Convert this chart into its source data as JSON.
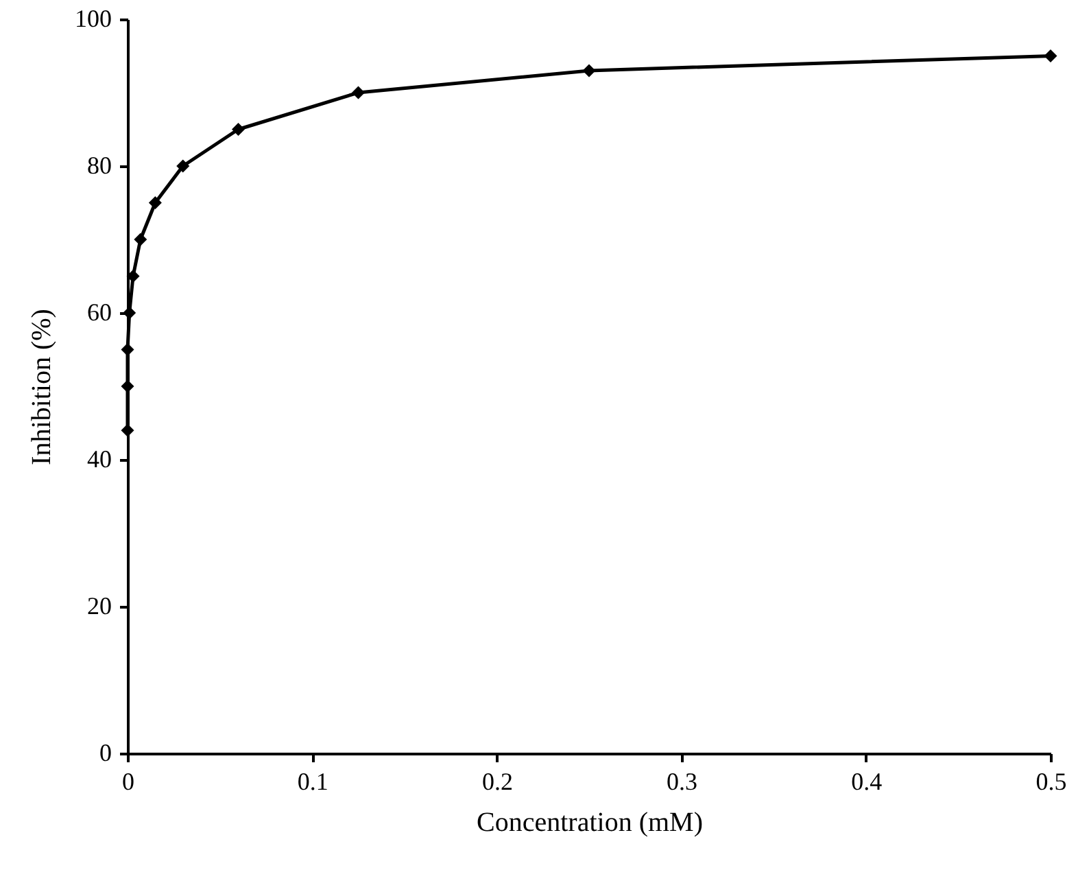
{
  "chart_data": {
    "type": "line",
    "xlabel": "Concentration (mM)",
    "ylabel": "Inhibition (%)",
    "x": [
      0,
      0,
      0,
      0.001,
      0.003,
      0.007,
      0.015,
      0.03,
      0.06,
      0.125,
      0.25,
      0.5
    ],
    "series": [
      {
        "color": "#000000",
        "values": [
          44,
          50,
          55,
          60,
          65,
          70,
          75,
          80,
          85,
          90,
          93,
          95
        ]
      }
    ],
    "xlim": [
      0,
      0.5
    ],
    "xticks": [
      0,
      0.1,
      0.2,
      0.3,
      0.4,
      0.5
    ],
    "ylim": [
      0,
      100
    ],
    "yticks": [
      0,
      20,
      40,
      60,
      80,
      100
    ],
    "grid": false,
    "marker": "diamond",
    "line_style": "solid"
  }
}
